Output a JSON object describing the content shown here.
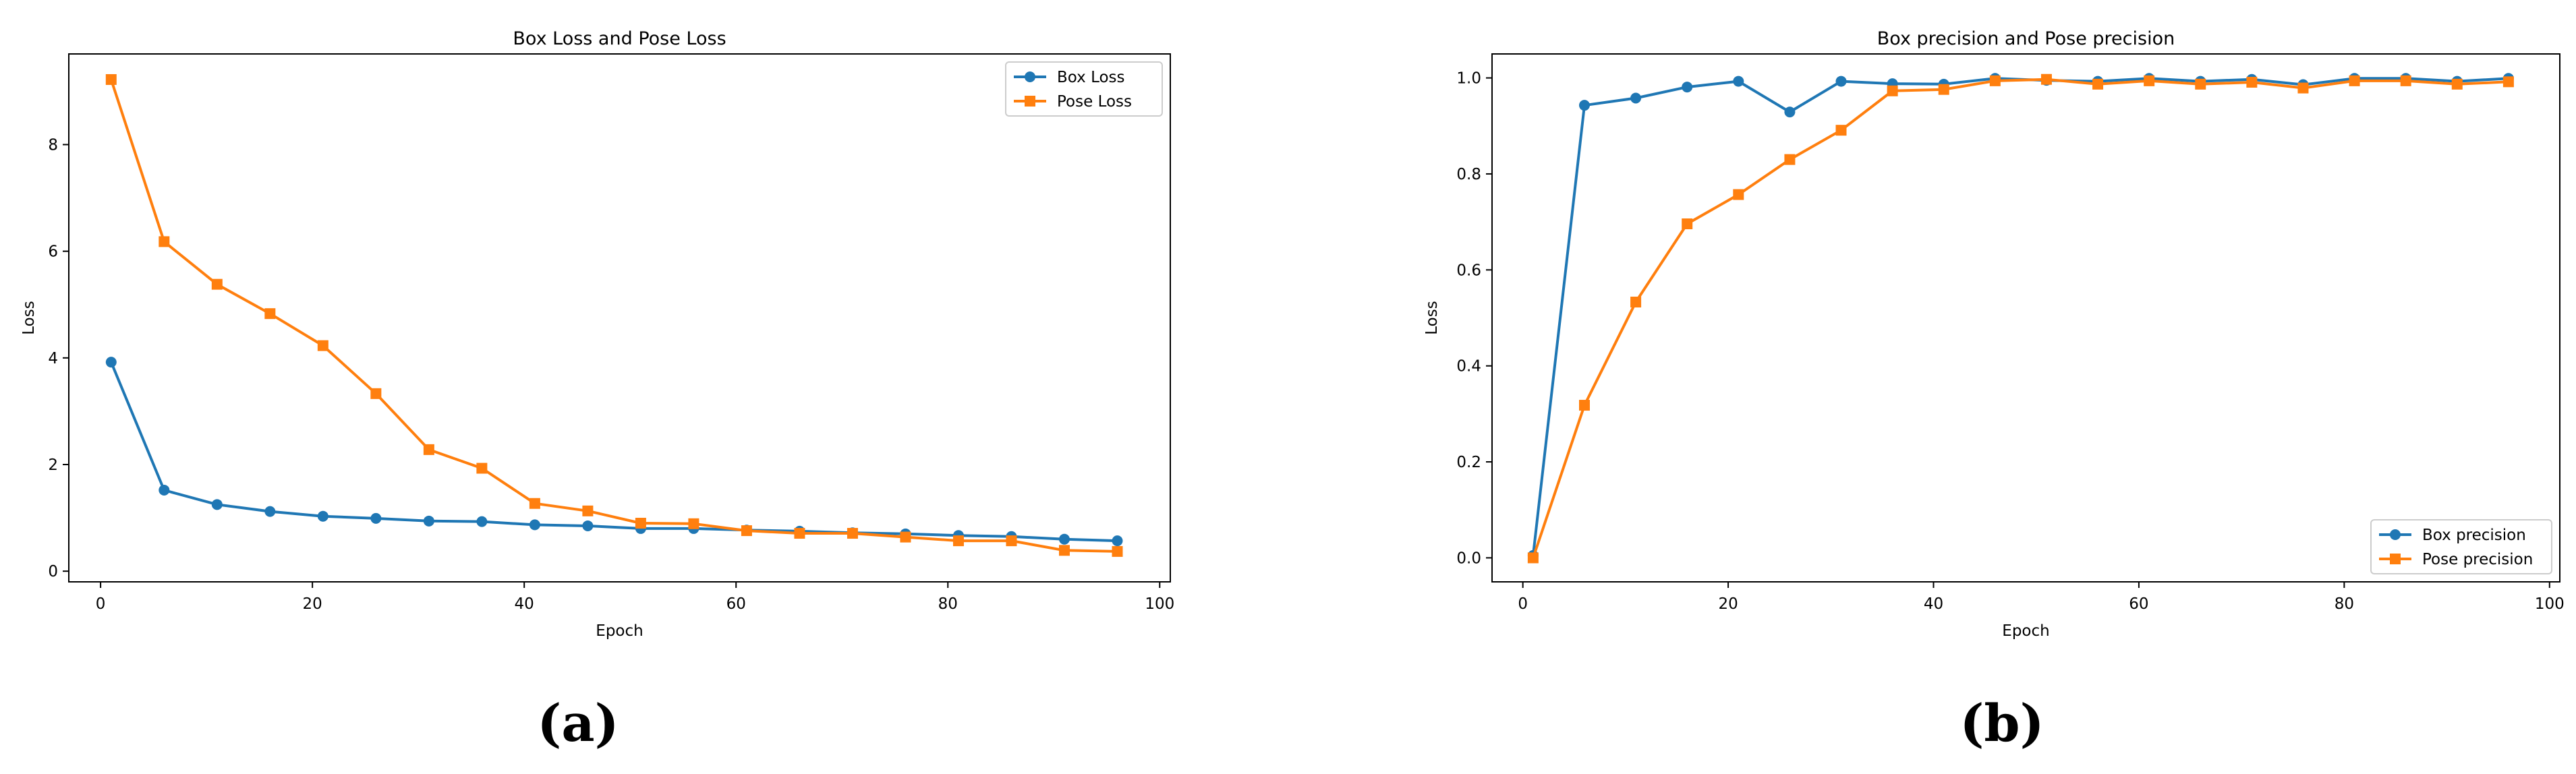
{
  "chart_data": [
    {
      "type": "line",
      "title": "Box Loss and Pose Loss",
      "xlabel": "Epoch",
      "ylabel": "Loss",
      "xlim": [
        -3,
        101
      ],
      "ylim": [
        -0.2,
        9.7
      ],
      "xticks": [
        0,
        20,
        40,
        60,
        80,
        100
      ],
      "yticks": [
        0,
        2,
        4,
        6,
        8
      ],
      "grid": false,
      "legend_position": "top-right",
      "x": [
        1,
        6,
        11,
        16,
        21,
        26,
        31,
        36,
        41,
        46,
        51,
        56,
        61,
        66,
        71,
        76,
        81,
        86,
        91,
        96
      ],
      "series": [
        {
          "name": "Box Loss",
          "marker": "circle",
          "color": "#1f77b4",
          "values": [
            3.92,
            1.52,
            1.25,
            1.12,
            1.03,
            0.99,
            0.94,
            0.93,
            0.87,
            0.85,
            0.8,
            0.8,
            0.77,
            0.75,
            0.72,
            0.7,
            0.67,
            0.65,
            0.6,
            0.57
          ]
        },
        {
          "name": "Pose Loss",
          "marker": "square",
          "color": "#ff7f0e",
          "values": [
            9.22,
            6.18,
            5.38,
            4.83,
            4.23,
            3.33,
            2.28,
            1.93,
            1.27,
            1.13,
            0.9,
            0.89,
            0.76,
            0.71,
            0.71,
            0.64,
            0.57,
            0.57,
            0.39,
            0.37
          ]
        }
      ]
    },
    {
      "type": "line",
      "title": "Box precision and Pose precision",
      "xlabel": "Epoch",
      "ylabel": "Loss",
      "xlim": [
        -3,
        101
      ],
      "ylim": [
        -0.05,
        1.05
      ],
      "xticks": [
        0,
        20,
        40,
        60,
        80,
        100
      ],
      "yticks": [
        0.0,
        0.2,
        0.4,
        0.6,
        0.8,
        1.0
      ],
      "grid": false,
      "legend_position": "bottom-right",
      "x": [
        1,
        6,
        11,
        16,
        21,
        26,
        31,
        36,
        41,
        46,
        51,
        56,
        61,
        66,
        71,
        76,
        81,
        86,
        91,
        96
      ],
      "series": [
        {
          "name": "Box precision",
          "marker": "circle",
          "color": "#1f77b4",
          "values": [
            0.005,
            0.943,
            0.958,
            0.981,
            0.993,
            0.929,
            0.993,
            0.988,
            0.987,
            0.999,
            0.995,
            0.993,
            0.999,
            0.993,
            0.997,
            0.986,
            0.999,
            0.999,
            0.993,
            0.999
          ]
        },
        {
          "name": "Pose precision",
          "marker": "square",
          "color": "#ff7f0e",
          "values": [
            0.0,
            0.318,
            0.533,
            0.696,
            0.757,
            0.83,
            0.891,
            0.973,
            0.976,
            0.994,
            0.997,
            0.987,
            0.994,
            0.987,
            0.991,
            0.979,
            0.994,
            0.994,
            0.987,
            0.992
          ]
        }
      ]
    }
  ],
  "captions": [
    "(a)",
    "(b)"
  ]
}
